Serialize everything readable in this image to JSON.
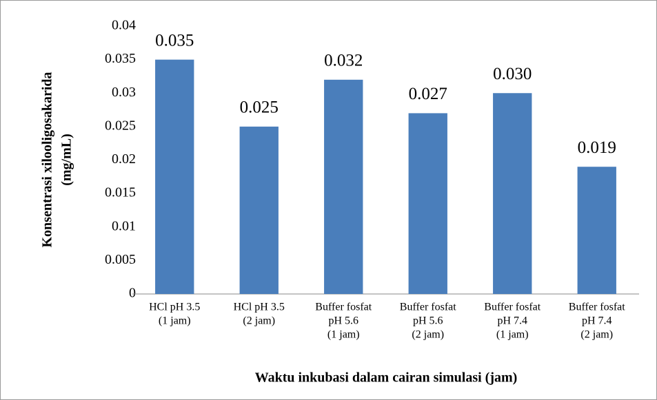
{
  "chart_data": {
    "type": "bar",
    "x_label": "Waktu inkubasi dalam cairan simulasi (jam)",
    "y_label": [
      "Konsentrasi xilooligosakarida",
      "(mg/mL)"
    ],
    "categories": [
      [
        "HCl pH 3.5",
        "(1 jam)"
      ],
      [
        "HCl pH 3.5",
        "(2 jam)"
      ],
      [
        "Buffer fosfat",
        "pH 5.6",
        "(1 jam)"
      ],
      [
        "Buffer fosfat",
        "pH 5.6",
        "(2 jam)"
      ],
      [
        "Buffer fosfat",
        "pH 7.4",
        "(1 jam)"
      ],
      [
        "Buffer fosfat",
        "pH 7.4",
        "(2 jam)"
      ]
    ],
    "values": [
      0.035,
      0.025,
      0.032,
      0.027,
      0.03,
      0.019
    ],
    "value_labels": [
      "0.035",
      "0.025",
      "0.032",
      "0.027",
      "0.030",
      "0.019"
    ],
    "color": "#4a7ebb",
    "ylim": [
      0,
      0.04
    ],
    "yticks": [
      0,
      0.005,
      0.01,
      0.015,
      0.02,
      0.025,
      0.03,
      0.035,
      0.04
    ],
    "grid": false
  }
}
